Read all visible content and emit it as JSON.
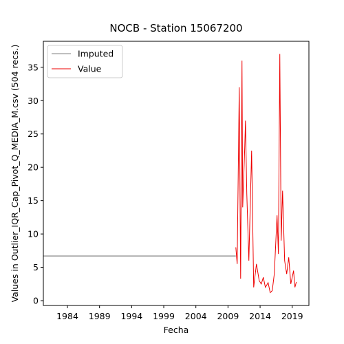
{
  "chart_data": {
    "type": "line",
    "title": "NOCB - Station 15067200",
    "xlabel": "Fecha",
    "ylabel": "Values in Outlier_IQR_Cap_Pivot_Q_MEDIA_M.csv (504 recs.)",
    "xlim": [
      1980.25,
      2021.6
    ],
    "xticks": [
      1984,
      1989,
      1994,
      1999,
      2004,
      2009,
      2014,
      2019
    ],
    "ylim": [
      -0.72,
      38.9
    ],
    "yticks": [
      0,
      5,
      10,
      15,
      20,
      25,
      30,
      35
    ],
    "legend": "upper left",
    "series": [
      {
        "name": "Imputed",
        "color": "#555555",
        "x": [
          1980.25,
          2010.22
        ],
        "values": [
          6.7,
          6.7
        ]
      },
      {
        "name": "Value",
        "color": "#ee0000",
        "x": [
          2010.22,
          2010.43,
          2010.75,
          2010.97,
          2011.18,
          2011.29,
          2011.61,
          2011.72,
          2011.93,
          2012.25,
          2012.68,
          2013.0,
          2013.43,
          2013.86,
          2014.18,
          2014.5,
          2014.82,
          2015.25,
          2015.57,
          2015.89,
          2016.21,
          2016.64,
          2016.85,
          2017.07,
          2017.28,
          2017.5,
          2017.82,
          2018.14,
          2018.46,
          2018.78,
          2019.21,
          2019.42,
          2019.64
        ],
        "values": [
          8,
          5.5,
          32,
          3.3,
          36,
          14,
          23,
          27,
          16,
          6,
          22.5,
          2,
          5.5,
          3,
          2.5,
          3.5,
          2,
          2.7,
          1.2,
          1.5,
          4,
          12.8,
          7,
          37,
          9,
          16.5,
          6,
          4,
          6.5,
          2.5,
          4.5,
          2,
          2.8
        ]
      }
    ]
  }
}
